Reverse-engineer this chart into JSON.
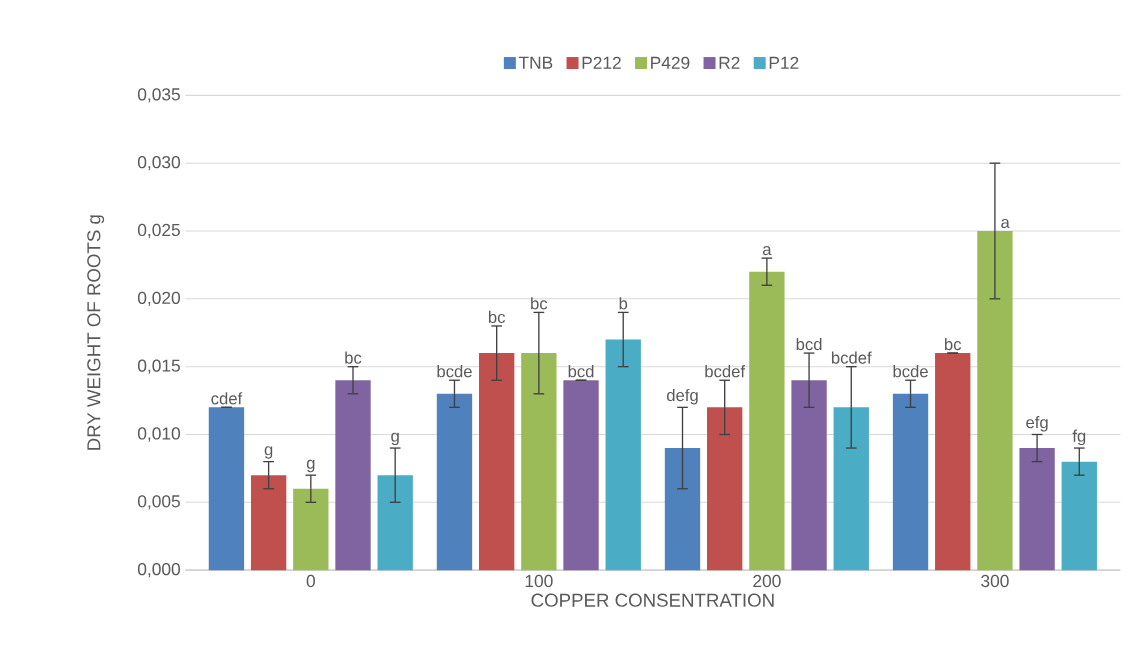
{
  "chart_data": {
    "type": "bar",
    "xlabel": "COPPER CONSENTRATION",
    "ylabel": "DRY WEIGHT OF ROOTS g",
    "categories": [
      "0",
      "100",
      "200",
      "300"
    ],
    "series": [
      {
        "name": "TNB",
        "color": "#4f81bd",
        "values": [
          0.012,
          0.013,
          0.009,
          0.013
        ],
        "errors": [
          0,
          0.001,
          0.003,
          0.001
        ],
        "value_labels": [
          "cdef",
          "bcde",
          "defg",
          "bcde"
        ]
      },
      {
        "name": "P212",
        "color": "#c0504d",
        "values": [
          0.007,
          0.016,
          0.012,
          0.016
        ],
        "errors": [
          0.001,
          0.002,
          0.002,
          0
        ],
        "value_labels": [
          "g",
          "bc",
          "bcdef",
          "bc"
        ]
      },
      {
        "name": "P429",
        "color": "#9bbb59",
        "values": [
          0.006,
          0.016,
          0.022,
          0.025
        ],
        "errors": [
          0.001,
          0.003,
          0.001,
          0.005
        ],
        "value_labels": [
          "g",
          "bc",
          "a",
          "a"
        ]
      },
      {
        "name": "R2",
        "color": "#8064a2",
        "values": [
          0.014,
          0.014,
          0.014,
          0.009
        ],
        "errors": [
          0.001,
          0,
          0.002,
          0.001
        ],
        "value_labels": [
          "bc",
          "bcd",
          "bcd",
          "efg"
        ]
      },
      {
        "name": "P12",
        "color": "#4bacc6",
        "values": [
          0.007,
          0.017,
          0.012,
          0.008
        ],
        "errors": [
          0.002,
          0.002,
          0.003,
          0.001
        ],
        "value_labels": [
          "g",
          "b",
          "bcdef",
          "fg"
        ]
      }
    ],
    "ylim": [
      0,
      0.035
    ],
    "yticks": [
      {
        "value": 0,
        "label": "0,000"
      },
      {
        "value": 0.005,
        "label": "0,005"
      },
      {
        "value": 0.01,
        "label": "0,010"
      },
      {
        "value": 0.015,
        "label": "0,015"
      },
      {
        "value": 0.02,
        "label": "0,020"
      },
      {
        "value": 0.025,
        "label": "0,025"
      },
      {
        "value": 0.03,
        "label": "0,030"
      },
      {
        "value": 0.035,
        "label": "0,035"
      }
    ],
    "grid": "y",
    "legend": "top"
  }
}
